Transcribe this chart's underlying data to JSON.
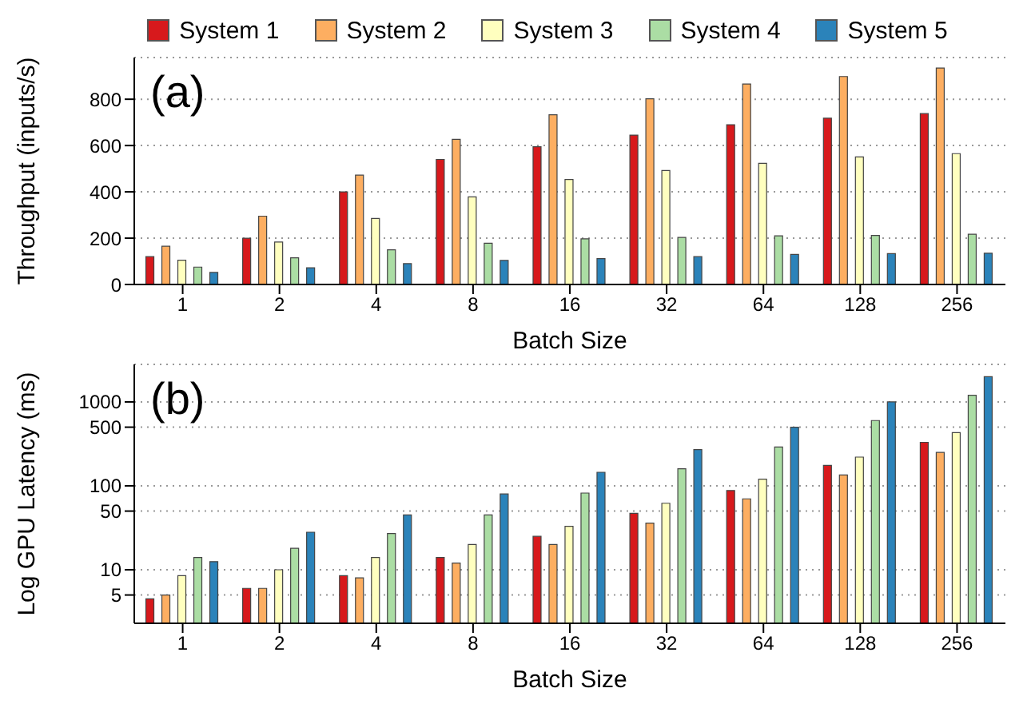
{
  "chart_data": [
    {
      "type": "bar",
      "ylabel": "Throughput (inputs/s)",
      "xlabel": "Batch Size",
      "annotations": [
        "(a)"
      ],
      "categories": [
        "1",
        "2",
        "4",
        "8",
        "16",
        "32",
        "64",
        "128",
        "256"
      ],
      "series": [
        {
          "name": "System 1",
          "color": "#d7191c",
          "values": [
            120,
            200,
            400,
            540,
            595,
            645,
            690,
            718,
            738
          ]
        },
        {
          "name": "System 2",
          "color": "#fdae61",
          "values": [
            165,
            295,
            472,
            627,
            733,
            802,
            866,
            898,
            935
          ]
        },
        {
          "name": "System 3",
          "color": "#ffffbf",
          "values": [
            105,
            183,
            285,
            378,
            453,
            492,
            523,
            551,
            565
          ]
        },
        {
          "name": "System 4",
          "color": "#abdda4",
          "values": [
            75,
            115,
            150,
            178,
            197,
            203,
            210,
            212,
            217
          ]
        },
        {
          "name": "System 5",
          "color": "#2b83ba",
          "values": [
            52,
            72,
            90,
            104,
            112,
            120,
            130,
            133,
            135
          ]
        }
      ],
      "ylim": [
        0,
        980
      ],
      "yticks": [
        0,
        200,
        400,
        600,
        800
      ],
      "grid": "y",
      "legend": "top"
    },
    {
      "type": "bar",
      "ylabel": "Log GPU Latency (ms)",
      "xlabel": "Batch Size",
      "annotations": [
        "(b)"
      ],
      "categories": [
        "1",
        "2",
        "4",
        "8",
        "16",
        "32",
        "64",
        "128",
        "256"
      ],
      "series": [
        {
          "color": "#d7191c",
          "values": [
            4.5,
            6,
            8.5,
            14,
            25,
            47,
            88,
            175,
            330
          ]
        },
        {
          "color": "#fdae61",
          "values": [
            5,
            6,
            8,
            12,
            20,
            36,
            70,
            135,
            250
          ]
        },
        {
          "color": "#ffffbf",
          "values": [
            8.5,
            10,
            14,
            20,
            33,
            62,
            120,
            220,
            430
          ]
        },
        {
          "color": "#abdda4",
          "values": [
            14,
            18,
            27,
            45,
            82,
            160,
            290,
            600,
            1200
          ]
        },
        {
          "color": "#2b83ba",
          "values": [
            12.5,
            28,
            45,
            80,
            145,
            270,
            500,
            1000,
            2000
          ]
        }
      ],
      "ylim": [
        2.3,
        2800
      ],
      "yticks": [
        5,
        10,
        50,
        100,
        500,
        1000
      ],
      "log": true,
      "grid": "y",
      "legend": false
    }
  ]
}
